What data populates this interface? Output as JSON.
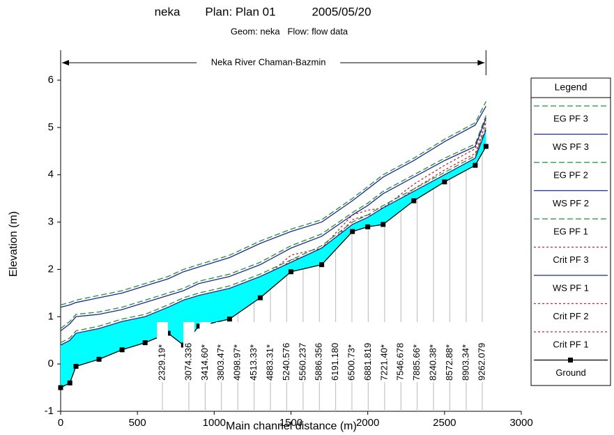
{
  "chart_data": {
    "type": "line",
    "title": [
      "neka",
      "Plan: Plan 01",
      "2005/05/20"
    ],
    "subtitle": "Geom: neka   Flow: flow data",
    "annotation": "Neka River Chaman-Bazmin",
    "x_label": "Main channel distance (m)",
    "y_label": "Elevation (m)",
    "legend_title": "Legend",
    "xlim": [
      0,
      3000
    ],
    "xticks": [
      0,
      500,
      1000,
      1500,
      2000,
      2500,
      3000
    ],
    "ylim": [
      -1,
      6
    ],
    "yticks": [
      -1,
      0,
      1,
      2,
      3,
      4,
      5,
      6
    ],
    "fill_color": "#00ffff",
    "x": [
      0,
      60,
      100,
      250,
      400,
      550,
      700,
      800,
      900,
      1100,
      1300,
      1500,
      1700,
      1900,
      2000,
      2100,
      2300,
      2500,
      2700,
      2770
    ],
    "series": [
      {
        "name": "EG PF 3",
        "color": "#1f8f3a",
        "dash": "dashed",
        "values": [
          1.25,
          1.3,
          1.35,
          1.45,
          1.55,
          1.7,
          1.85,
          2.0,
          2.1,
          2.3,
          2.6,
          2.85,
          3.05,
          3.5,
          3.75,
          4.0,
          4.35,
          4.75,
          5.1,
          5.55
        ]
      },
      {
        "name": "WS PF 3",
        "color": "#1a2a8f",
        "dash": "solid",
        "values": [
          1.2,
          1.25,
          1.3,
          1.4,
          1.5,
          1.65,
          1.8,
          1.95,
          2.05,
          2.25,
          2.55,
          2.8,
          3.0,
          3.45,
          3.7,
          3.95,
          4.3,
          4.7,
          5.05,
          5.45
        ]
      },
      {
        "name": "EG PF 2",
        "color": "#1f8f3a",
        "dash": "dashed",
        "values": [
          0.75,
          0.9,
          1.05,
          1.1,
          1.2,
          1.35,
          1.5,
          1.6,
          1.75,
          1.9,
          2.15,
          2.5,
          2.75,
          3.2,
          3.4,
          3.65,
          4.0,
          4.35,
          4.65,
          5.25
        ]
      },
      {
        "name": "WS PF 2",
        "color": "#1a2a8f",
        "dash": "solid",
        "values": [
          0.7,
          0.85,
          1.0,
          1.05,
          1.15,
          1.3,
          1.45,
          1.55,
          1.7,
          1.85,
          2.1,
          2.45,
          2.7,
          3.15,
          3.35,
          3.6,
          3.95,
          4.3,
          4.6,
          5.2
        ]
      },
      {
        "name": "EG PF 1",
        "color": "#1f8f3a",
        "dash": "dashed",
        "values": [
          0.45,
          0.55,
          0.7,
          0.8,
          0.95,
          1.05,
          1.25,
          1.4,
          1.5,
          1.65,
          1.9,
          2.2,
          2.5,
          3.0,
          3.15,
          3.35,
          3.7,
          4.05,
          4.4,
          5.0
        ]
      },
      {
        "name": "Crit PF 3",
        "color": "#c0262d",
        "dash": "dotted",
        "values": [
          -0.15,
          -0.05,
          0.3,
          0.45,
          0.65,
          0.8,
          1.0,
          0.75,
          1.15,
          1.3,
          1.75,
          2.3,
          2.45,
          3.15,
          3.25,
          3.3,
          3.8,
          4.2,
          4.55,
          5.2
        ]
      },
      {
        "name": "WS PF 1",
        "color": "#1a2a8f",
        "dash": "solid",
        "fill": true,
        "values": [
          0.4,
          0.5,
          0.65,
          0.75,
          0.9,
          1.0,
          1.2,
          1.35,
          1.45,
          1.6,
          1.85,
          2.15,
          2.45,
          2.95,
          3.1,
          3.3,
          3.65,
          4.0,
          4.35,
          4.95
        ]
      },
      {
        "name": "Crit PF 2",
        "color": "#c0262d",
        "dash": "dotted",
        "values": [
          -0.25,
          -0.15,
          0.2,
          0.35,
          0.55,
          0.7,
          0.9,
          0.65,
          1.05,
          1.2,
          1.65,
          2.2,
          2.35,
          3.05,
          3.15,
          3.2,
          3.7,
          4.1,
          4.45,
          5.1
        ]
      },
      {
        "name": "Crit PF 1",
        "color": "#c0262d",
        "dash": "dotted",
        "values": [
          -0.35,
          -0.25,
          0.1,
          0.25,
          0.45,
          0.6,
          0.8,
          0.55,
          0.95,
          1.1,
          1.55,
          2.1,
          2.25,
          2.95,
          3.05,
          3.1,
          3.6,
          4.0,
          4.35,
          5.15
        ]
      },
      {
        "name": "Ground",
        "color": "#000000",
        "dash": "solid",
        "marker": "square",
        "values": [
          -0.5,
          -0.4,
          -0.05,
          0.1,
          0.3,
          0.45,
          0.65,
          0.4,
          0.8,
          0.95,
          1.4,
          1.95,
          2.1,
          2.8,
          2.9,
          2.95,
          3.45,
          3.85,
          4.2,
          4.6
        ]
      }
    ],
    "stations": {
      "labels": [
        "2329.19*",
        "3074.336",
        "3414.60*",
        "3803.47*",
        "4098.97*",
        "4513.33*",
        "4883.31*",
        "5240.576",
        "5560.237",
        "5886.356",
        "6191.180",
        "6500.73*",
        "6881.819",
        "7221.40*",
        "7546.678",
        "7885.66*",
        "8240.38*",
        "8572.88*",
        "8903.34*",
        "9262.079"
      ],
      "x": [
        663,
        835,
        941,
        1047,
        1154,
        1260,
        1366,
        1472,
        1579,
        1685,
        1791,
        1897,
        2003,
        2110,
        2216,
        2322,
        2428,
        2534,
        2641,
        2746
      ]
    }
  }
}
